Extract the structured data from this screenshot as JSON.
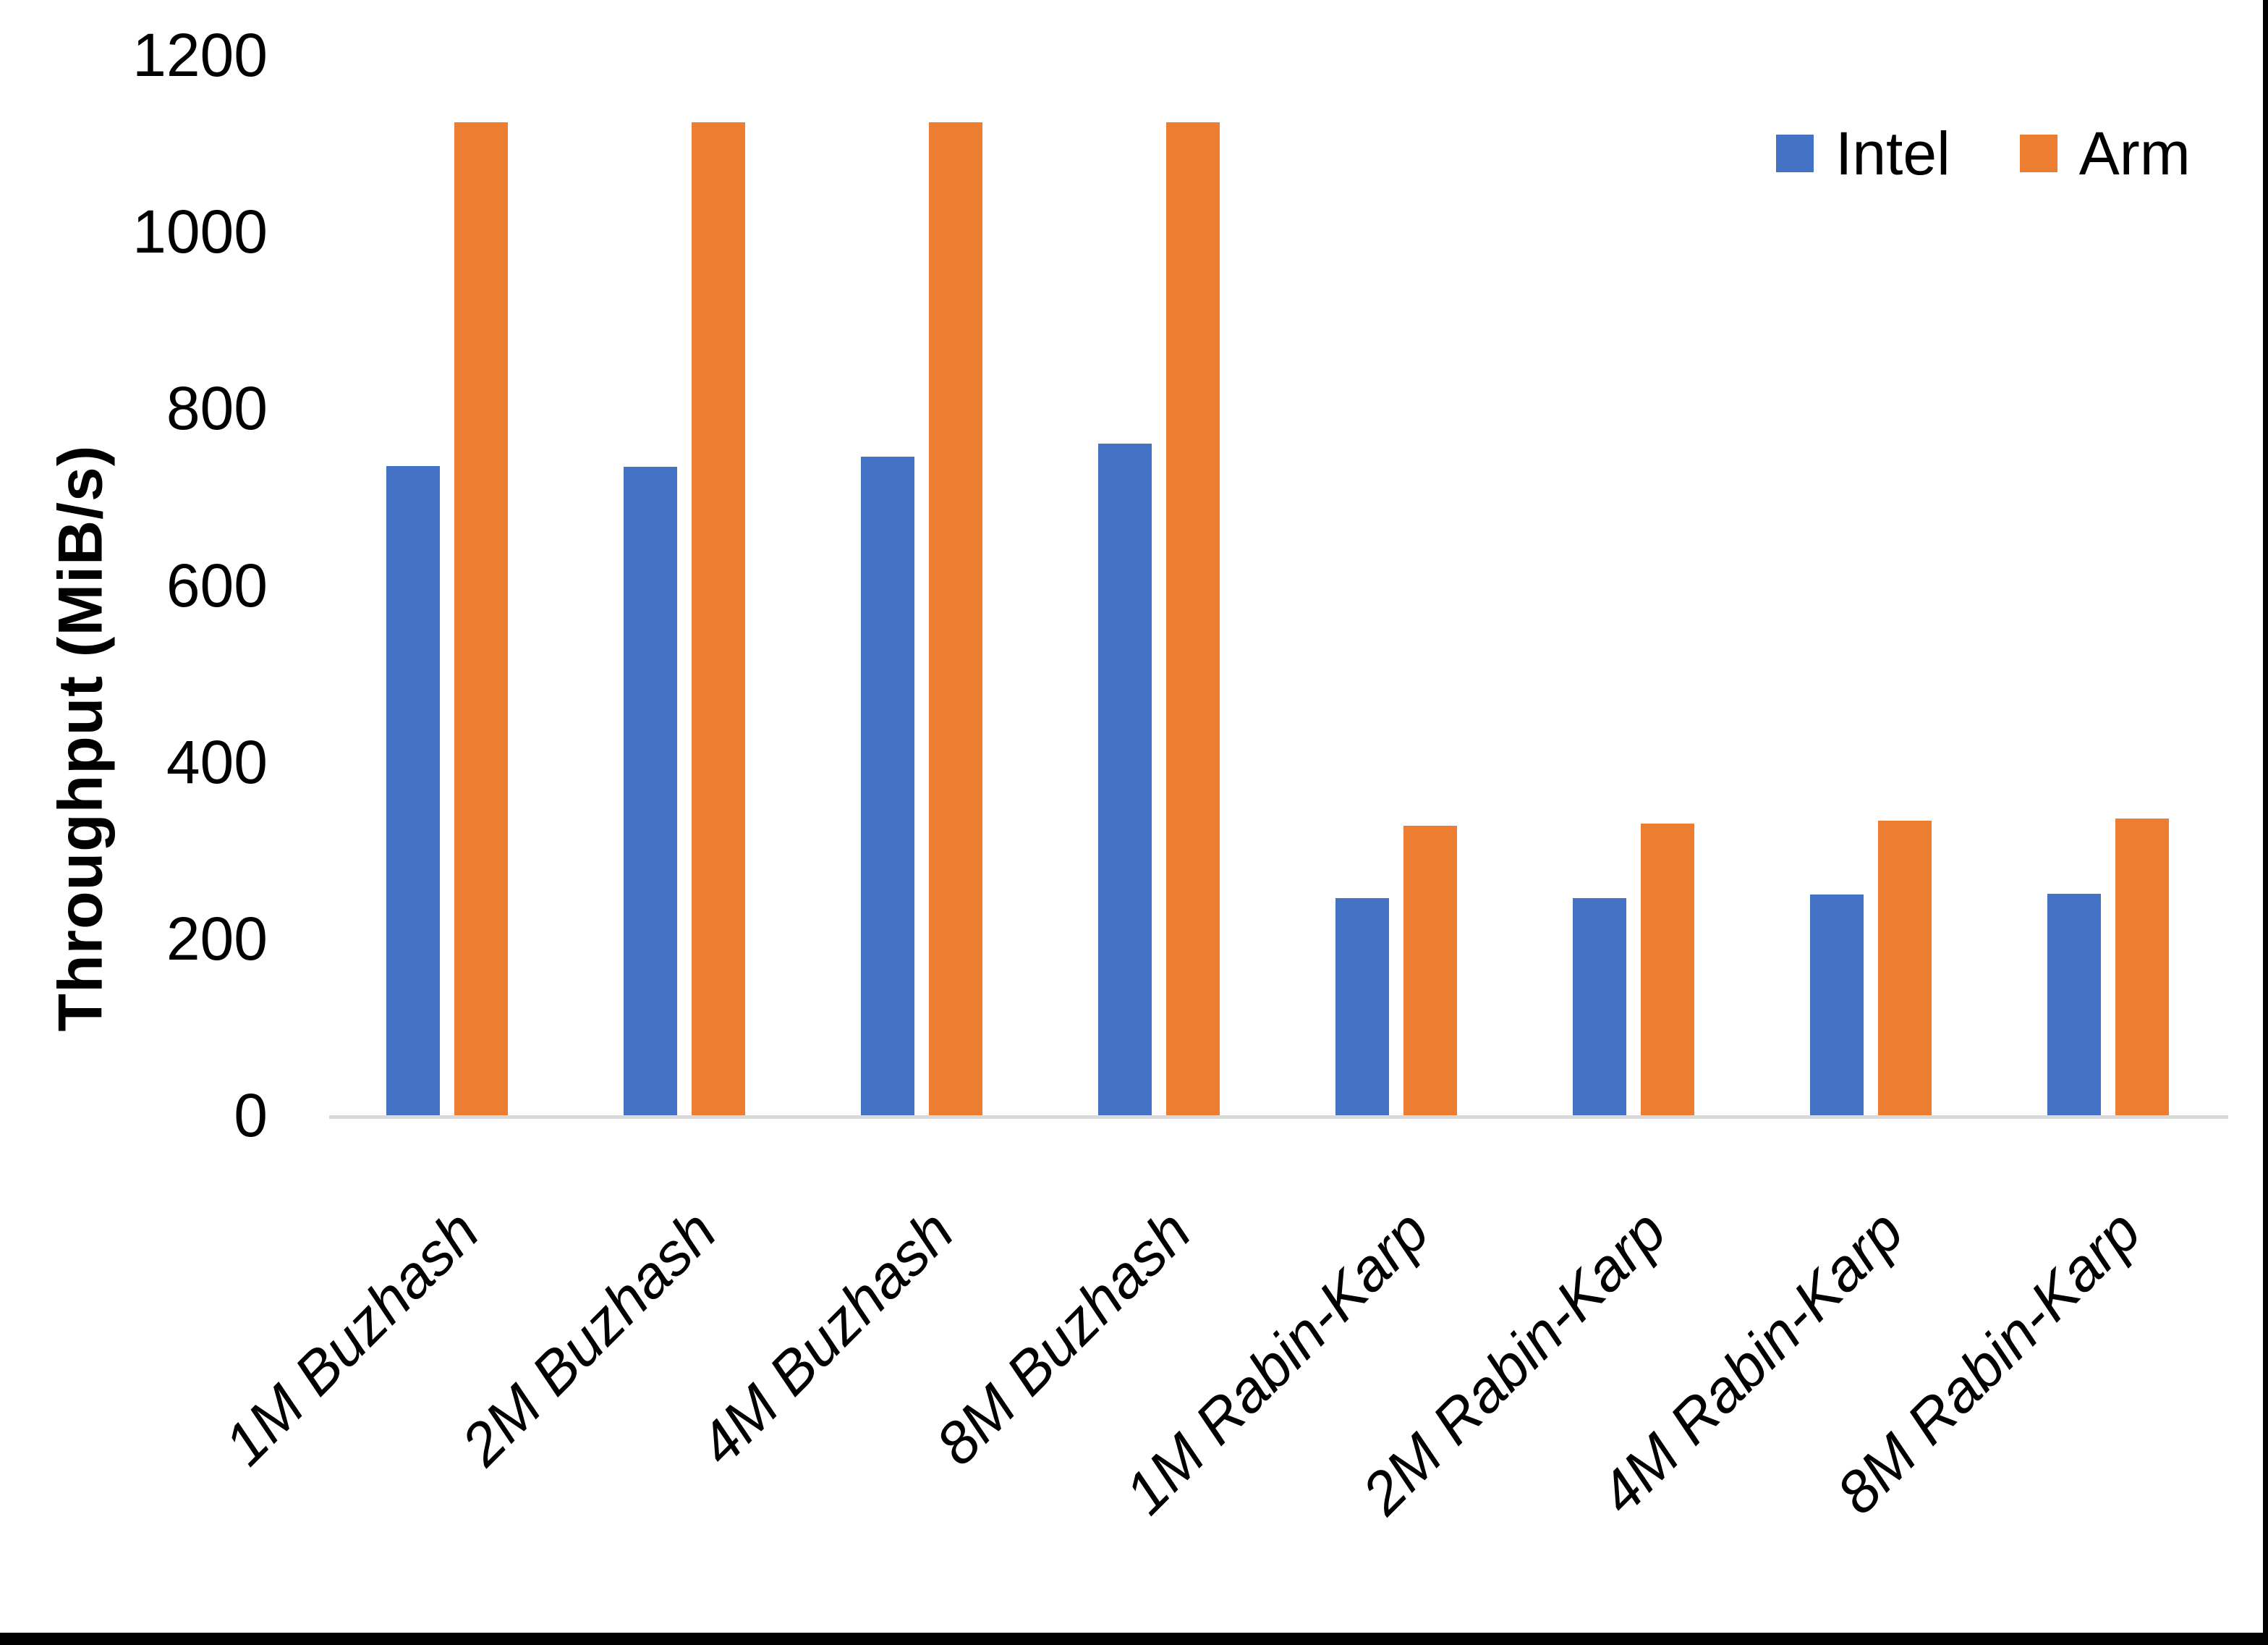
{
  "chart_data": {
    "type": "bar",
    "title": "",
    "ylabel": "Throughput (MiB/s)",
    "xlabel": "",
    "categories": [
      "1M Buzhash",
      "2M Buzhash",
      "4M Buzhash",
      "8M Buzhash",
      "1M Rabin-Karp",
      "2M Rabin-Karp",
      "4M Rabin-Karp",
      "8M Rabin-Karp"
    ],
    "series": [
      {
        "name": "Intel",
        "color": "#4472C4",
        "values": [
          735,
          734,
          745,
          760,
          246,
          246,
          250,
          251
        ]
      },
      {
        "name": "Arm",
        "color": "#ED7D31",
        "values": [
          1124,
          1124,
          1124,
          1124,
          328,
          330,
          333,
          336
        ]
      }
    ],
    "ylim": [
      0,
      1200
    ],
    "yticks": [
      0,
      200,
      400,
      600,
      800,
      1000,
      1200
    ],
    "grid": false,
    "legend_position": "top-right"
  },
  "colors": {
    "axis_line": "#D9D9D9",
    "text": "#000000",
    "frame_edge": "#000000"
  }
}
